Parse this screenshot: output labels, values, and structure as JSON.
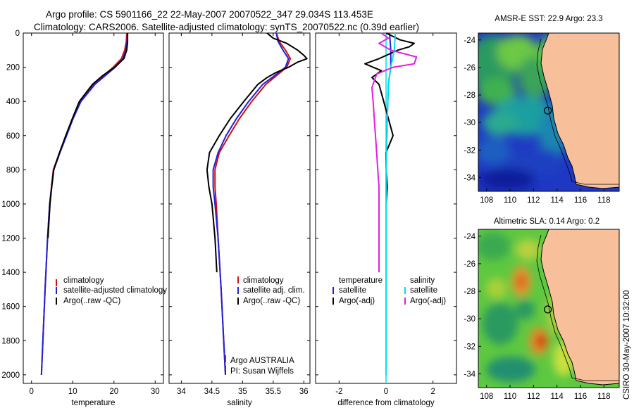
{
  "header": {
    "line1": "Argo profile: CS 5901166_22 22-May-2007 20070522_347 29.034S 113.453E",
    "line2": "Climatology: CARS2006. Satellite-adjusted climatology: synTS_20070522.nc (0.39d earlier)"
  },
  "credit": "CSIRO 30-May-2007 10:32:00",
  "colors": {
    "climatology": "#d01010",
    "satellite": "#2020e0",
    "argo": "#000000",
    "salinity_satellite": "#00e0e8",
    "salinity_argo": "#e020e0",
    "land": "#f7c09a"
  },
  "chart_data": [
    {
      "type": "line",
      "id": "temperature-profile",
      "xlabel": "temperature",
      "ylabel": "",
      "xlim": [
        -2,
        32
      ],
      "ylim": [
        2050,
        0
      ],
      "y_inverted": true,
      "xticks": [
        0,
        10,
        20,
        30
      ],
      "yticks": [
        0,
        200,
        400,
        600,
        800,
        1000,
        1200,
        1400,
        1600,
        1800,
        2000
      ],
      "legend": [
        "climatology",
        "satellite-adjusted climatology",
        "Argo(..raw -QC)"
      ],
      "legend_position": "lower-right",
      "series": [
        {
          "name": "climatology",
          "color": "#d01010",
          "depth": [
            0,
            50,
            100,
            150,
            200,
            300,
            400,
            500,
            600,
            700,
            800,
            1000,
            1200,
            1500,
            2000
          ],
          "values": [
            23.1,
            23.0,
            22.6,
            21.8,
            19.8,
            15.0,
            11.8,
            10.0,
            8.4,
            6.8,
            5.3,
            4.4,
            3.9,
            3.3,
            2.4
          ]
        },
        {
          "name": "satellite-adjusted climatology",
          "color": "#2020e0",
          "depth": [
            0,
            50,
            100,
            150,
            200,
            300,
            400,
            500,
            600,
            700,
            800,
            1000,
            1200,
            1500,
            2000
          ],
          "values": [
            23.3,
            23.2,
            22.9,
            22.2,
            20.3,
            15.4,
            12.0,
            10.1,
            8.5,
            6.9,
            5.4,
            4.4,
            3.9,
            3.3,
            2.4
          ]
        },
        {
          "name": "Argo(..raw -QC)",
          "color": "#000000",
          "depth": [
            0,
            50,
            100,
            150,
            200,
            250,
            300,
            400,
            500,
            600,
            700,
            800,
            900,
            1000,
            1200
          ],
          "values": [
            23.3,
            23.3,
            23.1,
            22.4,
            20.2,
            17.2,
            14.8,
            11.6,
            9.9,
            8.3,
            6.8,
            5.4,
            4.9,
            4.5,
            4.0
          ]
        }
      ]
    },
    {
      "type": "line",
      "id": "salinity-profile",
      "xlabel": "salinity",
      "ylabel": "",
      "xlim": [
        33.8,
        36.1
      ],
      "ylim": [
        2050,
        0
      ],
      "y_inverted": true,
      "xticks": [
        34,
        34.5,
        35,
        35.5,
        36
      ],
      "legend": [
        "climatology",
        "satellite adj. clim.",
        "Argo(..raw -QC)"
      ],
      "legend_position": "lower-right",
      "annotations": [
        "Argo AUSTRALIA",
        "PI: Susan Wijffels"
      ],
      "series": [
        {
          "name": "climatology",
          "color": "#d01010",
          "depth": [
            0,
            50,
            100,
            150,
            200,
            250,
            300,
            400,
            500,
            600,
            700,
            800,
            900,
            1000,
            1200,
            1500,
            2000
          ],
          "values": [
            35.55,
            35.6,
            35.7,
            35.78,
            35.72,
            35.55,
            35.38,
            35.15,
            34.95,
            34.78,
            34.62,
            34.55,
            34.55,
            34.57,
            34.6,
            34.65,
            34.72
          ]
        },
        {
          "name": "satellite adj. clim.",
          "color": "#2020e0",
          "depth": [
            0,
            50,
            100,
            150,
            200,
            250,
            300,
            400,
            500,
            600,
            700,
            800,
            900,
            1000,
            1200,
            1500,
            2000
          ],
          "values": [
            35.55,
            35.58,
            35.66,
            35.75,
            35.7,
            35.52,
            35.33,
            35.1,
            34.9,
            34.73,
            34.6,
            34.52,
            34.52,
            34.55,
            34.6,
            34.65,
            34.72
          ]
        },
        {
          "name": "Argo(..raw -QC)",
          "color": "#000000",
          "depth": [
            0,
            30,
            60,
            100,
            130,
            150,
            170,
            200,
            230,
            260,
            300,
            400,
            500,
            600,
            700,
            800,
            900,
            1000,
            1200,
            1400
          ],
          "values": [
            35.4,
            35.5,
            35.72,
            35.9,
            36.0,
            36.05,
            35.9,
            35.75,
            35.55,
            35.4,
            35.25,
            35.02,
            34.8,
            34.62,
            34.46,
            34.42,
            34.45,
            34.5,
            34.55,
            34.58
          ]
        }
      ]
    },
    {
      "type": "line",
      "id": "difference-profile",
      "xlabel": "difference from climatology",
      "ylabel": "",
      "xlim": [
        -3.0,
        3.0
      ],
      "ylim": [
        2050,
        0
      ],
      "y_inverted": true,
      "xticks": [
        -2,
        0,
        2
      ],
      "legend_titles": [
        "temperature",
        "salinity"
      ],
      "legend": [
        "satellite",
        "Argo(-adj)",
        "satellite",
        "Argo(-adj)"
      ],
      "series": [
        {
          "name": "satellite",
          "group": "temperature",
          "color": "#2020e0",
          "depth": [
            0,
            100,
            200,
            300,
            500,
            800,
            1200,
            1600,
            2000
          ],
          "values": [
            0.15,
            0.2,
            0.2,
            0.1,
            0.05,
            0.0,
            0.0,
            0.0,
            0.0
          ]
        },
        {
          "name": "Argo(-adj)",
          "group": "temperature",
          "color": "#000000",
          "depth": [
            0,
            40,
            60,
            80,
            100,
            150,
            180,
            220,
            260,
            300,
            400,
            500,
            600,
            700,
            800,
            900,
            1000,
            1100,
            1200
          ],
          "values": [
            0.0,
            0.6,
            1.2,
            1.0,
            0.5,
            -0.3,
            -0.9,
            -0.2,
            -0.6,
            -0.3,
            -0.1,
            0.1,
            0.3,
            0.0,
            0.0,
            0.05,
            0.0,
            0.0,
            0.0
          ]
        },
        {
          "name": "satellite",
          "group": "salinity",
          "color": "#00e0e8",
          "depth": [
            0,
            100,
            200,
            300,
            500,
            800,
            1200,
            1600,
            2000
          ],
          "values": [
            0.4,
            0.35,
            0.2,
            0.1,
            0.05,
            0.0,
            0.0,
            0.0,
            0.0
          ]
        },
        {
          "name": "Argo(-adj)",
          "group": "salinity",
          "color": "#e020e0",
          "depth": [
            0,
            30,
            60,
            100,
            140,
            180,
            200,
            240,
            280,
            320,
            400,
            500,
            600,
            700,
            800,
            900,
            1000,
            1200,
            1400
          ],
          "values": [
            -0.2,
            0.1,
            -0.3,
            0.2,
            1.3,
            1.2,
            0.3,
            -0.4,
            -0.5,
            -0.6,
            -0.55,
            -0.5,
            -0.45,
            -0.4,
            -0.35,
            -0.3,
            -0.3,
            -0.3,
            -0.3
          ]
        }
      ]
    }
  ],
  "maps": [
    {
      "id": "sst-map",
      "title": "AMSR-E SST: 22.9 Argo: 23.3",
      "xticks": [
        108,
        110,
        112,
        114,
        116,
        118
      ],
      "yticks": [
        -24,
        -26,
        -28,
        -30,
        -32,
        -34
      ],
      "float_position": [
        113.453,
        -29.034
      ]
    },
    {
      "id": "sla-map",
      "title": "Altimetric SLA: 0.14 Argo: 0.2",
      "xticks": [
        108,
        110,
        112,
        114,
        116,
        118
      ],
      "yticks": [
        -24,
        -26,
        -28,
        -30,
        -32,
        -34
      ],
      "float_position": [
        113.453,
        -29.034
      ]
    }
  ]
}
